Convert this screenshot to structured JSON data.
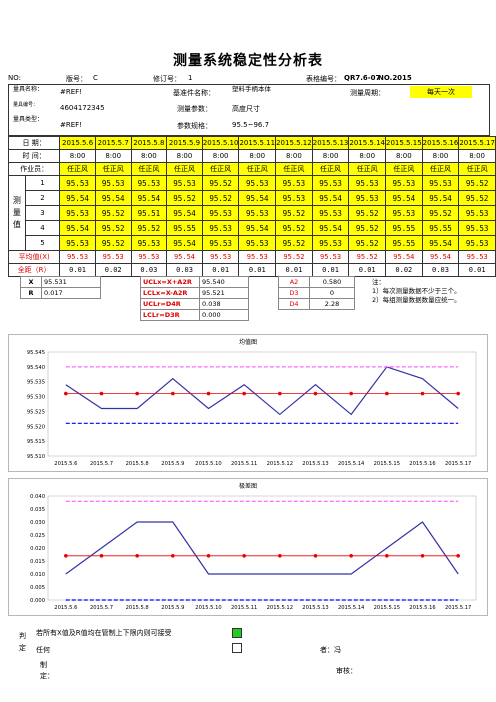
{
  "title": "测量系统稳定性分析表",
  "meta": {
    "no_label": "NO:",
    "version_label": "版号：",
    "version_value": "C",
    "revision_label": "修订号：",
    "revision_value": "1",
    "form_no_label": "表格编号：",
    "form_no_value": "QR7.6-07",
    "no_value": "NO.2015"
  },
  "info": {
    "gauge_name_label": "量具名称：",
    "gauge_name_value": "#REF!",
    "gauge_no_label": "量具编号：",
    "gauge_no_value": "4604172345",
    "gauge_type_label": "量具类型：",
    "gauge_type_value": "#REF!",
    "ref_part_label": "基准件名称：",
    "ref_part_value": "塑料手柄本体",
    "param_label": "测量参数：",
    "param_value": "高度尺寸",
    "spec_label": "参数规格：",
    "spec_value": "95.5~96.7",
    "period_label": "测量周期：",
    "period_value": "每天一次"
  },
  "table": {
    "date_label": "日 期：",
    "time_label": "时 间：",
    "operator_label": "作业员：",
    "measured_label": "测量值",
    "avg_label": "平均值(X)",
    "range_label": "全距（R）",
    "dates": [
      "2015.5.6",
      "2015.5.7",
      "2015.5.8",
      "2015.5.9",
      "2015.5.10",
      "2015.5.11",
      "2015.5.12",
      "2015.5.13",
      "2015.5.14",
      "2015.5.15",
      "2015.5.16",
      "2015.5.17"
    ],
    "times": [
      "8:00",
      "8:00",
      "8:00",
      "8:00",
      "8:00",
      "8:00",
      "8:00",
      "8:00",
      "8:00",
      "8:00",
      "8:00",
      "8:00"
    ],
    "operators": [
      "任正风",
      "任正风",
      "任正风",
      "任正风",
      "任正风",
      "任正风",
      "任正风",
      "任正风",
      "任正风",
      "任正风",
      "任正风",
      "任正风"
    ],
    "row_nums": [
      "1",
      "2",
      "3",
      "4",
      "5"
    ],
    "rows": [
      [
        "95.53",
        "95.53",
        "95.53",
        "95.53",
        "95.52",
        "95.53",
        "95.53",
        "95.53",
        "95.53",
        "95.53",
        "95.53",
        "95.52"
      ],
      [
        "95.54",
        "95.54",
        "95.54",
        "95.52",
        "95.52",
        "95.54",
        "95.53",
        "95.54",
        "95.53",
        "95.54",
        "95.54",
        "95.52"
      ],
      [
        "95.53",
        "95.52",
        "95.51",
        "95.54",
        "95.53",
        "95.53",
        "95.52",
        "95.53",
        "95.52",
        "95.53",
        "95.52",
        "95.53"
      ],
      [
        "95.54",
        "95.52",
        "95.52",
        "95.55",
        "95.53",
        "95.54",
        "95.52",
        "95.54",
        "95.52",
        "95.55",
        "95.55",
        "95.53"
      ],
      [
        "95.53",
        "95.52",
        "95.53",
        "95.54",
        "95.53",
        "95.53",
        "95.52",
        "95.53",
        "95.52",
        "95.55",
        "95.54",
        "95.53"
      ]
    ],
    "avgs": [
      "95.53",
      "95.53",
      "95.53",
      "95.54",
      "95.53",
      "95.53",
      "95.52",
      "95.53",
      "95.52",
      "95.54",
      "95.54",
      "95.53"
    ],
    "ranges": [
      "0.01",
      "0.02",
      "0.03",
      "0.03",
      "0.01",
      "0.01",
      "0.01",
      "0.01",
      "0.01",
      "0.02",
      "0.03",
      "0.01"
    ]
  },
  "stats": {
    "xbar_label": "X",
    "xbar_value": "95.531",
    "rbar_label": "R",
    "rbar_value": "0.017",
    "uclx_label": "UCLx=X+A2R",
    "uclx_value": "95.540",
    "lclx_label": "LCLx=X-A2R",
    "lclx_value": "95.521",
    "uclr_label": "UCLr=D4R",
    "uclr_value": "0.038",
    "lclr_label": "LCLr=D3R",
    "lclr_value": "0.000",
    "a2_label": "A2",
    "a2_value": "0.580",
    "d3_label": "D3",
    "d3_value": "0",
    "d4_label": "D4",
    "d4_value": "2.28",
    "note1": "注：",
    "note2": "1）每次测量数据不少于三个。",
    "note3": "2）每组测量数据数量应统一。"
  },
  "chart_data": [
    {
      "type": "line",
      "title": "均值图",
      "categories": [
        "2015.5.6",
        "2015.5.7",
        "2015.5.8",
        "2015.5.9",
        "2015.5.10",
        "2015.5.11",
        "2015.5.12",
        "2015.5.13",
        "2015.5.14",
        "2015.5.15",
        "2015.5.16",
        "2015.5.17"
      ],
      "ylim": [
        95.51,
        95.545
      ],
      "yticks": [
        "95.545",
        "95.540",
        "95.535",
        "95.530",
        "95.525",
        "95.520",
        "95.515",
        "95.510"
      ],
      "series": [
        {
          "values": [
            95.534,
            95.526,
            95.526,
            95.536,
            95.526,
            95.534,
            95.524,
            95.534,
            95.524,
            95.54,
            95.536,
            95.526
          ],
          "color": "#3333aa"
        },
        {
          "values": [
            95.54,
            95.54,
            95.54,
            95.54,
            95.54,
            95.54,
            95.54,
            95.54,
            95.54,
            95.54,
            95.54,
            95.54
          ],
          "color": "#ff44ff"
        },
        {
          "values": [
            95.531,
            95.531,
            95.531,
            95.531,
            95.531,
            95.531,
            95.531,
            95.531,
            95.531,
            95.531,
            95.531,
            95.531
          ],
          "color": "#ee0000"
        },
        {
          "values": [
            95.521,
            95.521,
            95.521,
            95.521,
            95.521,
            95.521,
            95.521,
            95.521,
            95.521,
            95.521,
            95.521,
            95.521
          ],
          "color": "#0000ff"
        }
      ]
    },
    {
      "type": "line",
      "title": "极差图",
      "categories": [
        "2015.5.6",
        "2015.5.7",
        "2015.5.8",
        "2015.5.9",
        "2015.5.10",
        "2015.5.11",
        "2015.5.12",
        "2015.5.13",
        "2015.5.14",
        "2015.5.15",
        "2015.5.16",
        "2015.5.17"
      ],
      "ylim": [
        0,
        0.04
      ],
      "yticks": [
        "0.040",
        "0.035",
        "0.030",
        "0.025",
        "0.020",
        "0.015",
        "0.010",
        "0.005",
        "0.000"
      ],
      "series": [
        {
          "values": [
            0.01,
            0.02,
            0.03,
            0.03,
            0.01,
            0.01,
            0.01,
            0.01,
            0.01,
            0.02,
            0.03,
            0.01
          ],
          "color": "#3333aa"
        },
        {
          "values": [
            0.038,
            0.038,
            0.038,
            0.038,
            0.038,
            0.038,
            0.038,
            0.038,
            0.038,
            0.038,
            0.038,
            0.038
          ],
          "color": "#ff44ff"
        },
        {
          "values": [
            0.017,
            0.017,
            0.017,
            0.017,
            0.017,
            0.017,
            0.017,
            0.017,
            0.017,
            0.017,
            0.017,
            0.017
          ],
          "color": "#ee0000"
        },
        {
          "values": [
            0,
            0,
            0,
            0,
            0,
            0,
            0,
            0,
            0,
            0,
            0,
            0
          ],
          "color": "#0000ff"
        }
      ]
    }
  ],
  "judge": {
    "judge_label": "判定",
    "line1": "若所有X值及R值均在管制上下限内则可接受",
    "line2": "任何",
    "approver_label": "者：冯",
    "maker_label": "制定：",
    "reviewer_label": "审核："
  }
}
